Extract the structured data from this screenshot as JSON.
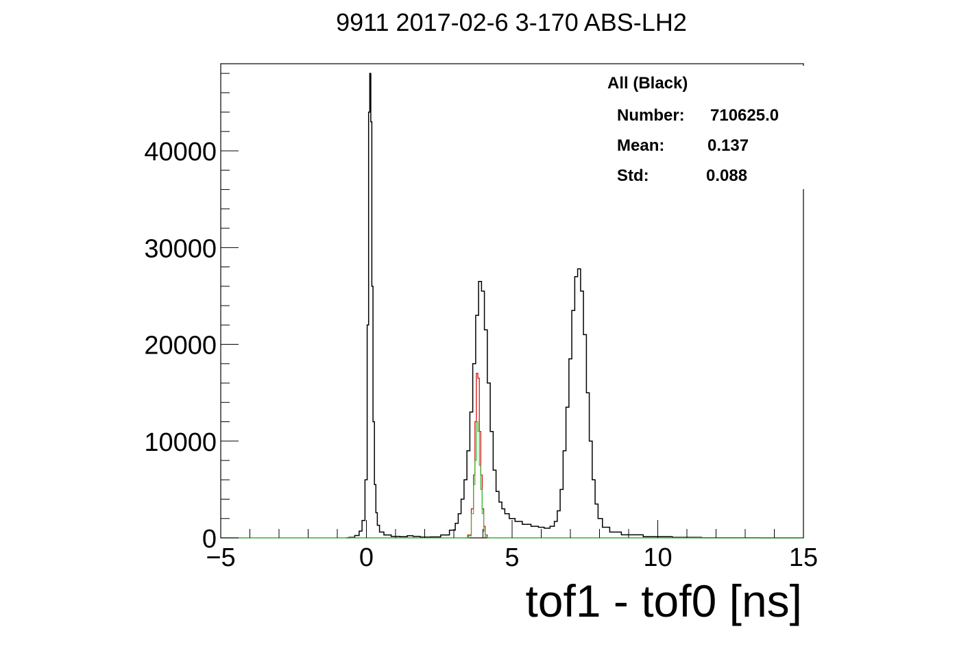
{
  "chart_data": {
    "type": "histogram",
    "title": "9911 2017-02-6 3-170 ABS-LH2",
    "xlabel": "tof1 - tof0 [ns]",
    "ylabel": "",
    "xlim": [
      -5,
      15
    ],
    "ylim": [
      0,
      49000
    ],
    "x_ticks": [
      {
        "value": -5,
        "label": "−5"
      },
      {
        "value": 0,
        "label": "0"
      },
      {
        "value": 5,
        "label": "5"
      },
      {
        "value": 10,
        "label": "10"
      },
      {
        "value": 15,
        "label": "15"
      }
    ],
    "y_ticks": [
      {
        "value": 0,
        "label": "0"
      },
      {
        "value": 10000,
        "label": "10000"
      },
      {
        "value": 20000,
        "label": "20000"
      },
      {
        "value": 30000,
        "label": "30000"
      },
      {
        "value": 40000,
        "label": "40000"
      }
    ],
    "grid": false,
    "stats_box": {
      "header": "All (Black)",
      "rows": [
        {
          "label": "Number:",
          "value": "710625.0"
        },
        {
          "label": "Mean:",
          "value": "0.137"
        },
        {
          "label": "Std:",
          "value": "0.088"
        }
      ]
    },
    "series": [
      {
        "color": "#000000",
        "points": [
          [
            -0.7,
            0
          ],
          [
            -0.5,
            60
          ],
          [
            -0.3,
            250
          ],
          [
            -0.2,
            700
          ],
          [
            -0.1,
            1800
          ],
          [
            0.0,
            6000
          ],
          [
            0.05,
            22000
          ],
          [
            0.1,
            44000
          ],
          [
            0.13,
            48000
          ],
          [
            0.17,
            43000
          ],
          [
            0.2,
            26000
          ],
          [
            0.25,
            12000
          ],
          [
            0.3,
            5500
          ],
          [
            0.35,
            2600
          ],
          [
            0.4,
            1300
          ],
          [
            0.5,
            600
          ],
          [
            0.7,
            300
          ],
          [
            1.0,
            150
          ],
          [
            1.3,
            120
          ],
          [
            1.5,
            220
          ],
          [
            1.7,
            150
          ],
          [
            2.0,
            80
          ],
          [
            2.4,
            100
          ],
          [
            2.7,
            300
          ],
          [
            3.0,
            800
          ],
          [
            3.1,
            1500
          ],
          [
            3.2,
            2500
          ],
          [
            3.3,
            4000
          ],
          [
            3.4,
            6000
          ],
          [
            3.5,
            9000
          ],
          [
            3.6,
            13000
          ],
          [
            3.7,
            18000
          ],
          [
            3.8,
            23000
          ],
          [
            3.9,
            26500
          ],
          [
            4.0,
            25500
          ],
          [
            4.1,
            21500
          ],
          [
            4.2,
            16000
          ],
          [
            4.3,
            11000
          ],
          [
            4.4,
            7000
          ],
          [
            4.5,
            4800
          ],
          [
            4.6,
            3700
          ],
          [
            4.7,
            3000
          ],
          [
            4.8,
            2500
          ],
          [
            5.0,
            2000
          ],
          [
            5.2,
            1700
          ],
          [
            5.5,
            1400
          ],
          [
            5.8,
            1200
          ],
          [
            6.0,
            1100
          ],
          [
            6.2,
            1000
          ],
          [
            6.4,
            1200
          ],
          [
            6.5,
            1700
          ],
          [
            6.6,
            2800
          ],
          [
            6.7,
            5000
          ],
          [
            6.8,
            9000
          ],
          [
            6.9,
            13500
          ],
          [
            7.0,
            18500
          ],
          [
            7.1,
            23500
          ],
          [
            7.2,
            27000
          ],
          [
            7.3,
            27800
          ],
          [
            7.4,
            25500
          ],
          [
            7.5,
            21000
          ],
          [
            7.6,
            15000
          ],
          [
            7.7,
            10000
          ],
          [
            7.8,
            6000
          ],
          [
            7.9,
            3500
          ],
          [
            8.0,
            2000
          ],
          [
            8.2,
            1100
          ],
          [
            8.5,
            600
          ],
          [
            9.0,
            320
          ],
          [
            10.0,
            130
          ],
          [
            11.0,
            50
          ],
          [
            12.0,
            10
          ],
          [
            15.0,
            0
          ]
        ]
      },
      {
        "color": "#cc0000",
        "points": [
          [
            3.4,
            0
          ],
          [
            3.55,
            300
          ],
          [
            3.65,
            3000
          ],
          [
            3.7,
            6500
          ],
          [
            3.75,
            12000
          ],
          [
            3.8,
            17000
          ],
          [
            3.85,
            16500
          ],
          [
            3.9,
            11000
          ],
          [
            3.95,
            6500
          ],
          [
            4.0,
            3000
          ],
          [
            4.05,
            1200
          ],
          [
            4.1,
            300
          ],
          [
            4.2,
            0
          ]
        ]
      },
      {
        "color": "#33bb33",
        "points": [
          [
            -5.0,
            0
          ],
          [
            3.45,
            0
          ],
          [
            3.55,
            200
          ],
          [
            3.65,
            2500
          ],
          [
            3.7,
            5500
          ],
          [
            3.75,
            8000
          ],
          [
            3.8,
            12000
          ],
          [
            3.85,
            11000
          ],
          [
            3.9,
            7500
          ],
          [
            3.95,
            5000
          ],
          [
            4.0,
            2500
          ],
          [
            4.05,
            700
          ],
          [
            4.1,
            100
          ],
          [
            4.2,
            0
          ],
          [
            15.0,
            0
          ]
        ]
      }
    ]
  }
}
